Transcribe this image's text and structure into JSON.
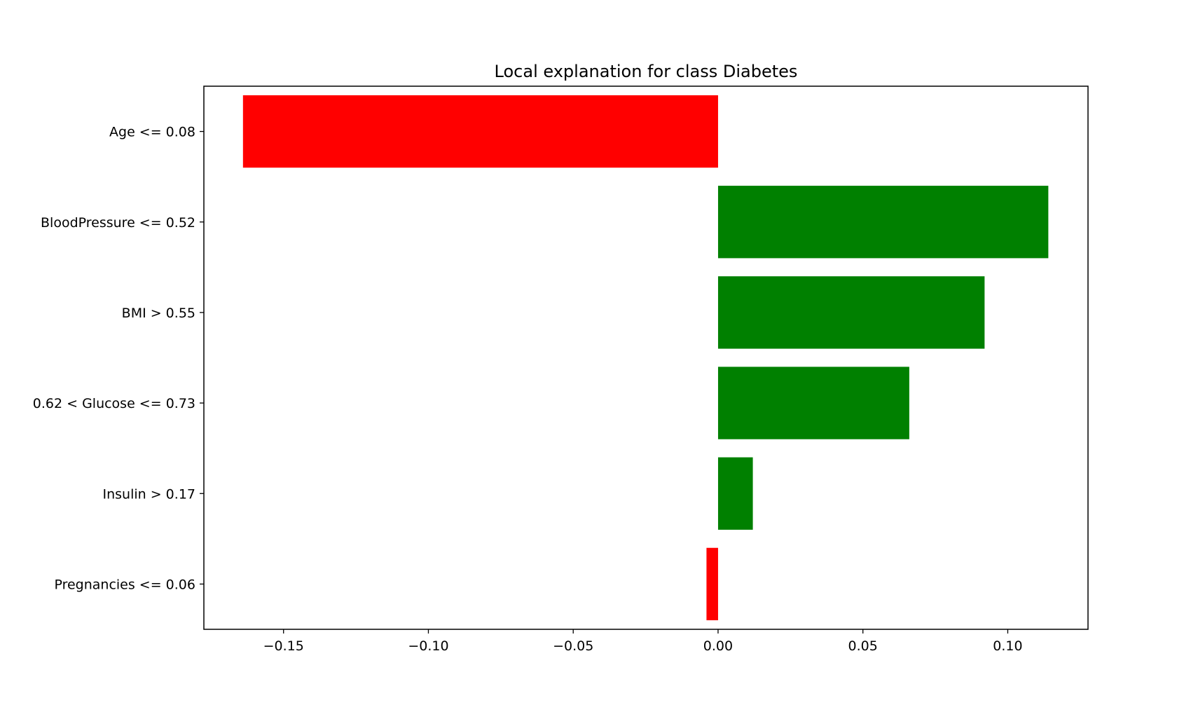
{
  "chart_data": {
    "type": "bar",
    "orientation": "horizontal",
    "title": "Local explanation for class Diabetes",
    "xlabel": "",
    "ylabel": "",
    "categories": [
      "Age <= 0.08",
      "BloodPressure <= 0.52",
      "BMI > 0.55",
      "0.62 < Glucose <= 0.73",
      "Insulin > 0.17",
      "Pregnancies <= 0.06"
    ],
    "values": [
      -0.164,
      0.114,
      0.092,
      0.066,
      0.012,
      -0.004
    ],
    "xlim": [
      -0.1775,
      0.1277
    ],
    "xticks": [
      -0.15,
      -0.1,
      -0.05,
      0.0,
      0.05,
      0.1
    ],
    "xtick_labels": [
      "−0.15",
      "−0.10",
      "−0.05",
      "0.00",
      "0.05",
      "0.10"
    ],
    "grid": false,
    "colors": {
      "positive": "#008000",
      "negative": "#ff0000",
      "axis": "#000000"
    }
  }
}
